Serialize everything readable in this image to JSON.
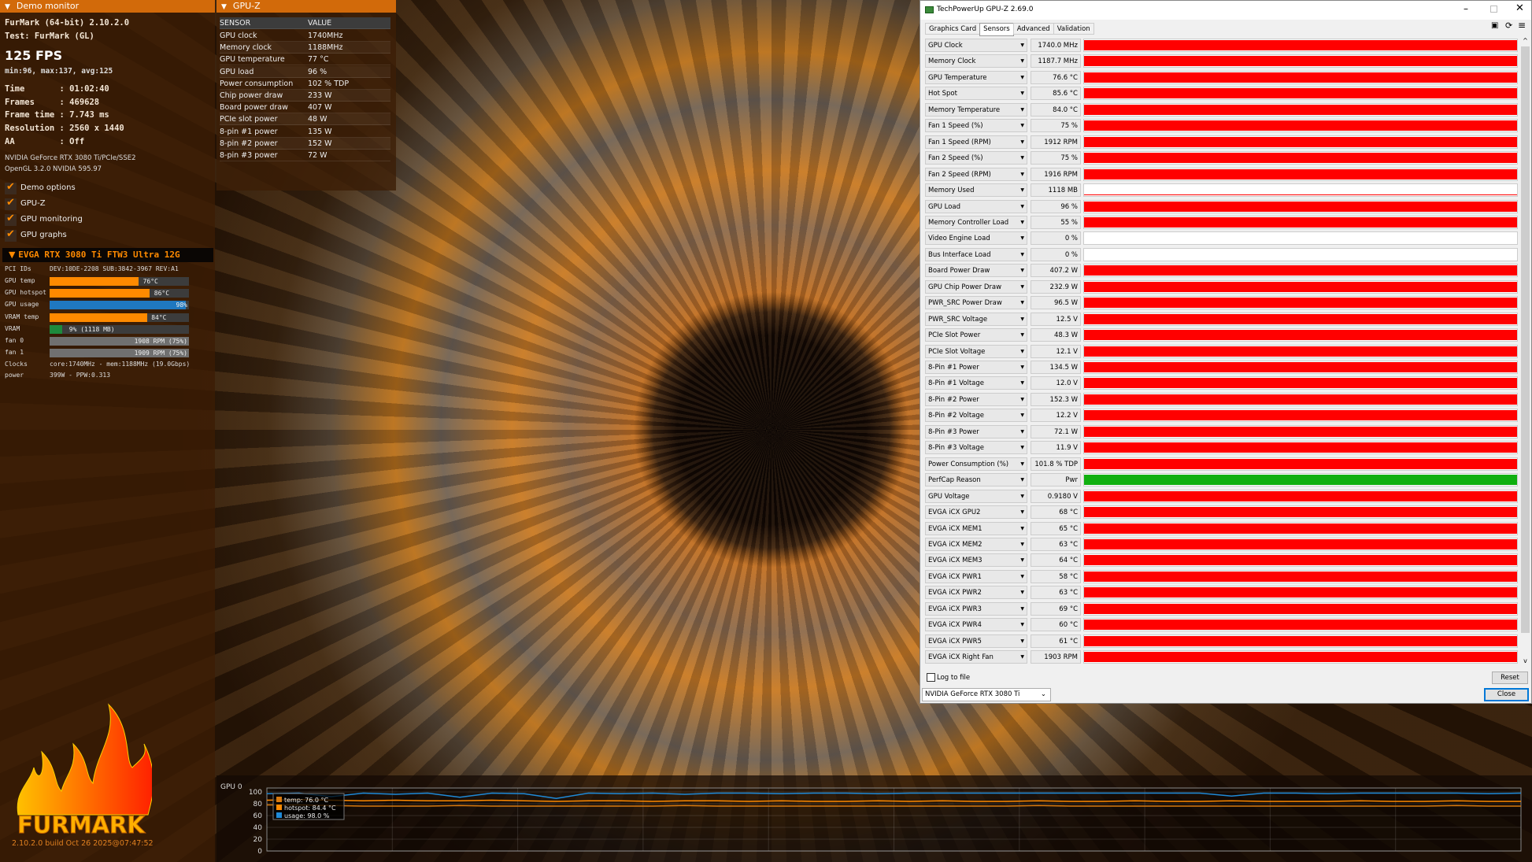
{
  "left": {
    "header": "Demo monitor",
    "app": "FurMark (64-bit) 2.10.2.0",
    "test": "Test: FurMark (GL)",
    "fps": "125 FPS",
    "fps_stats": "min:96, max:137, avg:125",
    "stats": [
      "Time       : 01:02:40",
      "Frames     : 469628",
      "Frame time : 7.743 ms",
      "Resolution : 2560 x 1440",
      "AA         : Off"
    ],
    "renderer": "NVIDIA GeForce RTX 3080 Ti/PCIe/SSE2",
    "opengl": "OpenGL 3.2.0 NVIDIA 595.97",
    "checkboxes": [
      {
        "label": "Demo options",
        "checked": true
      },
      {
        "label": "GPU-Z",
        "checked": true
      },
      {
        "label": "GPU monitoring",
        "checked": true
      },
      {
        "label": "GPU graphs",
        "checked": true
      }
    ],
    "gpu_header": "EVGA RTX 3080 Ti FTW3 Ultra 12G",
    "pci": {
      "label": "PCI IDs",
      "value": "DEV:10DE-2208 SUB:3842-3967 REV:A1"
    },
    "bars": [
      {
        "label": "GPU temp",
        "value": "76°C",
        "level": 0.64,
        "color": "#ff8a00"
      },
      {
        "label": "GPU hotspot",
        "value": "86°C",
        "level": 0.72,
        "color": "#ff8a00"
      },
      {
        "label": "GPU usage",
        "value": "98%",
        "level": 0.98,
        "color": "#1f78c0"
      },
      {
        "label": "VRAM temp",
        "value": "84°C",
        "level": 0.7,
        "color": "#ff8a00"
      },
      {
        "label": "VRAM",
        "value": "9% (1118 MB)",
        "level": 0.09,
        "color": "#1e8a3c"
      },
      {
        "label": "fan 0",
        "value": "1908 RPM (75%)",
        "level": 1.0,
        "color": "#707070"
      },
      {
        "label": "fan 1",
        "value": "1909 RPM (75%)",
        "level": 1.0,
        "color": "#707070"
      }
    ],
    "clocks": {
      "label": "Clocks",
      "value": "core:1740MHz - mem:1188MHz (19.0Gbps)"
    },
    "power": {
      "label": "power",
      "value": "399W - PPW:0.313"
    },
    "logo": "FURMARK",
    "build": "2.10.2.0 build Oct 26 2025@07:47:52"
  },
  "gpuz_overlay": {
    "header": "GPU-Z",
    "columns": [
      "SENSOR",
      "VALUE"
    ],
    "rows": [
      [
        "GPU clock",
        "1740MHz"
      ],
      [
        "Memory clock",
        "1188MHz"
      ],
      [
        "GPU temperature",
        "77 °C"
      ],
      [
        "GPU load",
        "96 %"
      ],
      [
        "Power consumption",
        "102 % TDP"
      ],
      [
        "Chip power draw",
        "233 W"
      ],
      [
        "Board power draw",
        "407 W"
      ],
      [
        "PCIe slot power",
        "48 W"
      ],
      [
        "8-pin #1 power",
        "135 W"
      ],
      [
        "8-pin #2 power",
        "152 W"
      ],
      [
        "8-pin #3 power",
        "72 W"
      ]
    ]
  },
  "gpuz_window": {
    "title": "TechPowerUp GPU-Z 2.69.0",
    "tabs": [
      "Graphics Card",
      "Sensors",
      "Advanced",
      "Validation"
    ],
    "active_tab": "Sensors",
    "sensors": [
      [
        "GPU Clock",
        "1740.0 MHz",
        1
      ],
      [
        "Memory Clock",
        "1187.7 MHz",
        1
      ],
      [
        "GPU Temperature",
        "76.6 °C",
        1
      ],
      [
        "Hot Spot",
        "85.6 °C",
        1
      ],
      [
        "Memory Temperature",
        "84.0 °C",
        1
      ],
      [
        "Fan 1 Speed (%)",
        "75 %",
        1
      ],
      [
        "Fan 1 Speed (RPM)",
        "1912 RPM",
        1
      ],
      [
        "Fan 2 Speed (%)",
        "75 %",
        1
      ],
      [
        "Fan 2 Speed (RPM)",
        "1916 RPM",
        1
      ],
      [
        "Memory Used",
        "1118 MB",
        0.1
      ],
      [
        "GPU Load",
        "96 %",
        1
      ],
      [
        "Memory Controller Load",
        "55 %",
        1
      ],
      [
        "Video Engine Load",
        "0 %",
        0
      ],
      [
        "Bus Interface Load",
        "0 %",
        0
      ],
      [
        "Board Power Draw",
        "407.2 W",
        1
      ],
      [
        "GPU Chip Power Draw",
        "232.9 W",
        1
      ],
      [
        "PWR_SRC Power Draw",
        "96.5 W",
        1
      ],
      [
        "PWR_SRC Voltage",
        "12.5 V",
        1
      ],
      [
        "PCIe Slot Power",
        "48.3 W",
        1
      ],
      [
        "PCIe Slot Voltage",
        "12.1 V",
        1
      ],
      [
        "8-Pin #1 Power",
        "134.5 W",
        1
      ],
      [
        "8-Pin #1 Voltage",
        "12.0 V",
        1
      ],
      [
        "8-Pin #2 Power",
        "152.3 W",
        1
      ],
      [
        "8-Pin #2 Voltage",
        "12.2 V",
        1
      ],
      [
        "8-Pin #3 Power",
        "72.1 W",
        1
      ],
      [
        "8-Pin #3 Voltage",
        "11.9 V",
        1
      ],
      [
        "Power Consumption (%)",
        "101.8 % TDP",
        1
      ],
      [
        "PerfCap Reason",
        "Pwr",
        1
      ],
      [
        "GPU Voltage",
        "0.9180 V",
        1
      ],
      [
        "EVGA iCX GPU2",
        "68 °C",
        1
      ],
      [
        "EVGA iCX MEM1",
        "65 °C",
        1
      ],
      [
        "EVGA iCX MEM2",
        "63 °C",
        1
      ],
      [
        "EVGA iCX MEM3",
        "64 °C",
        1
      ],
      [
        "EVGA iCX PWR1",
        "58 °C",
        1
      ],
      [
        "EVGA iCX PWR2",
        "63 °C",
        1
      ],
      [
        "EVGA iCX PWR3",
        "69 °C",
        1
      ],
      [
        "EVGA iCX PWR4",
        "60 °C",
        1
      ],
      [
        "EVGA iCX PWR5",
        "61 °C",
        1
      ],
      [
        "EVGA iCX Right Fan",
        "1903 RPM",
        1
      ]
    ],
    "graph_color": "#ff0000",
    "perfcap_color": "#10b010",
    "log_to_file": "Log to file",
    "log_checked": false,
    "reset": "Reset",
    "gpu_select": "NVIDIA GeForce RTX 3080 Ti",
    "close": "Close"
  },
  "chart_data": {
    "type": "line",
    "title": "GPU 0",
    "ylim": [
      0,
      100
    ],
    "yticks": [
      0,
      20,
      40,
      60,
      80,
      100
    ],
    "grid": true,
    "legend_placement": "top-left",
    "series": [
      {
        "name": "temp: 76.0 °C",
        "color": "#d87a10",
        "values": [
          78,
          78,
          77,
          76,
          76,
          76,
          77,
          76,
          76,
          76,
          76,
          76,
          76,
          77,
          76,
          76,
          76,
          76,
          76,
          76,
          76,
          76,
          76,
          76,
          77,
          76,
          76,
          76,
          76,
          76,
          76,
          76,
          76,
          76,
          76,
          76,
          76,
          77,
          76,
          76
        ]
      },
      {
        "name": "hotspot: 84.4 °C",
        "color": "#ff8a00",
        "values": [
          86,
          87,
          86,
          85,
          86,
          85,
          85,
          86,
          85,
          84,
          85,
          85,
          84,
          85,
          85,
          84,
          85,
          84,
          84,
          85,
          84,
          85,
          84,
          84,
          85,
          84,
          84,
          85,
          84,
          84,
          85,
          84,
          84,
          84,
          85,
          84,
          84,
          85,
          84,
          84
        ]
      },
      {
        "name": "usage: 98.0 %",
        "color": "#1f8ad8",
        "values": [
          97,
          98,
          92,
          98,
          96,
          98,
          91,
          98,
          97,
          89,
          98,
          97,
          98,
          96,
          98,
          98,
          97,
          98,
          98,
          97,
          98,
          98,
          98,
          98,
          98,
          98,
          98,
          98,
          98,
          98,
          93,
          98,
          98,
          97,
          98,
          98,
          98,
          98,
          97,
          98
        ]
      }
    ]
  }
}
